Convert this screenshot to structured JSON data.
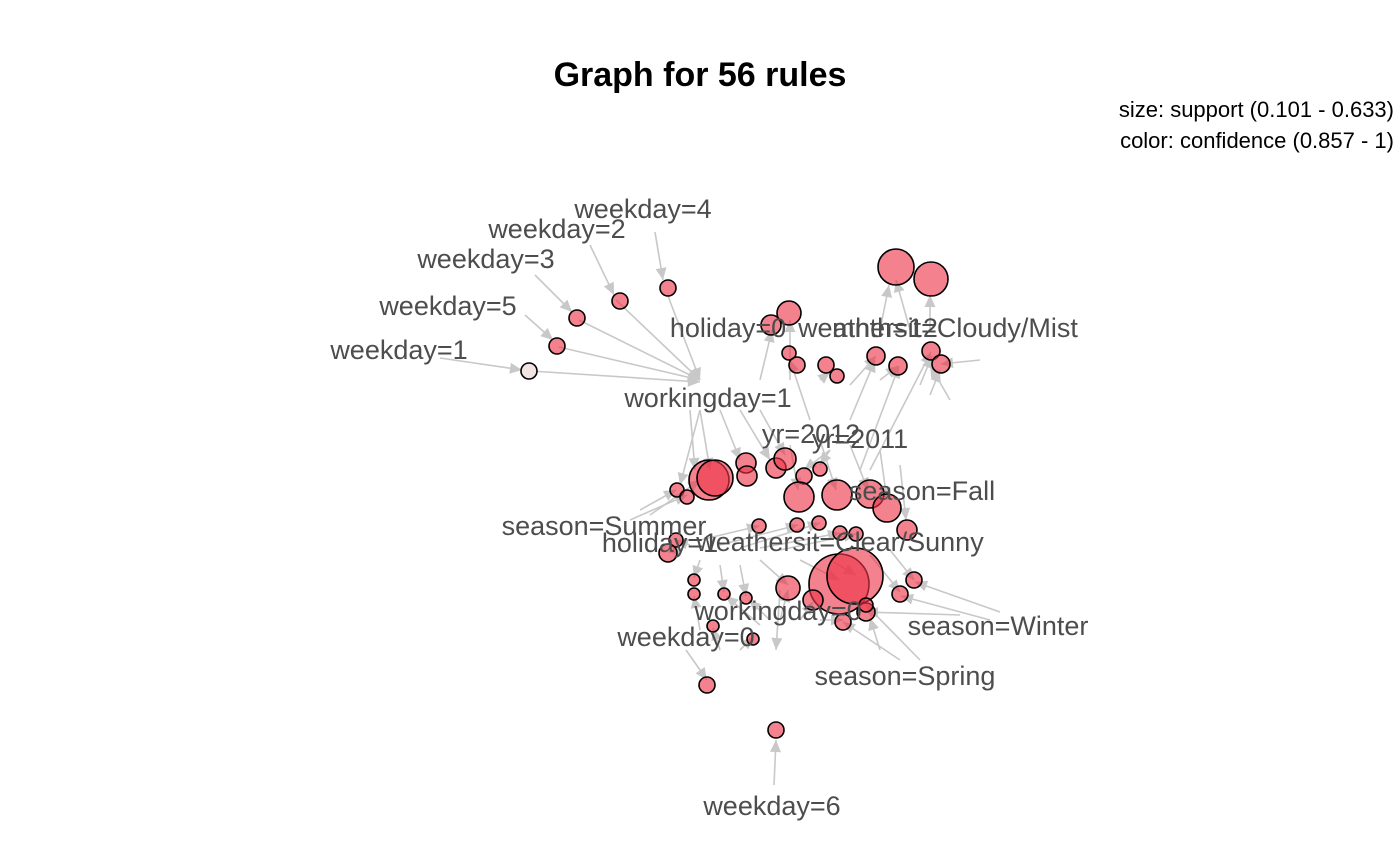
{
  "title": "Graph for 56 rules",
  "legend": {
    "size_line": "size: support (0.101 - 0.633)",
    "color_line": "color: confidence (0.857 - 1)"
  },
  "colors": {
    "node_fill": "#ee3648",
    "node_fill_light": "#f3e4e4",
    "node_stroke": "#000000",
    "edge": "#c8c8c8",
    "label": "#4d4d4d"
  },
  "items": [
    {
      "id": "weekday-4",
      "label": "weekday=4"
    },
    {
      "id": "weekday-2",
      "label": "weekday=2"
    },
    {
      "id": "weekday-3",
      "label": "weekday=3"
    },
    {
      "id": "weekday-5",
      "label": "weekday=5"
    },
    {
      "id": "weekday-1",
      "label": "weekday=1"
    },
    {
      "id": "holiday-0",
      "label": "holiday=0"
    },
    {
      "id": "weathersit-cloudy",
      "label": "weathersit=Cloudy/Mist"
    },
    {
      "id": "month-12",
      "label": "mnth=12"
    },
    {
      "id": "workingday-1",
      "label": "workingday=1"
    },
    {
      "id": "yr-2012",
      "label": "yr=2012"
    },
    {
      "id": "yr-2011",
      "label": "yr=2011"
    },
    {
      "id": "season-fall",
      "label": "season=Fall"
    },
    {
      "id": "season-summer",
      "label": "season=Summer"
    },
    {
      "id": "holiday-1",
      "label": "holiday=1"
    },
    {
      "id": "weathersit-clear",
      "label": "weathersit=Clear/Sunny"
    },
    {
      "id": "workingday-0",
      "label": "workingday=0"
    },
    {
      "id": "season-winter",
      "label": "season=Winter"
    },
    {
      "id": "weekday-0",
      "label": "weekday=0"
    },
    {
      "id": "season-spring",
      "label": "season=Spring"
    },
    {
      "id": "weekday-6",
      "label": "weekday=6"
    }
  ]
}
